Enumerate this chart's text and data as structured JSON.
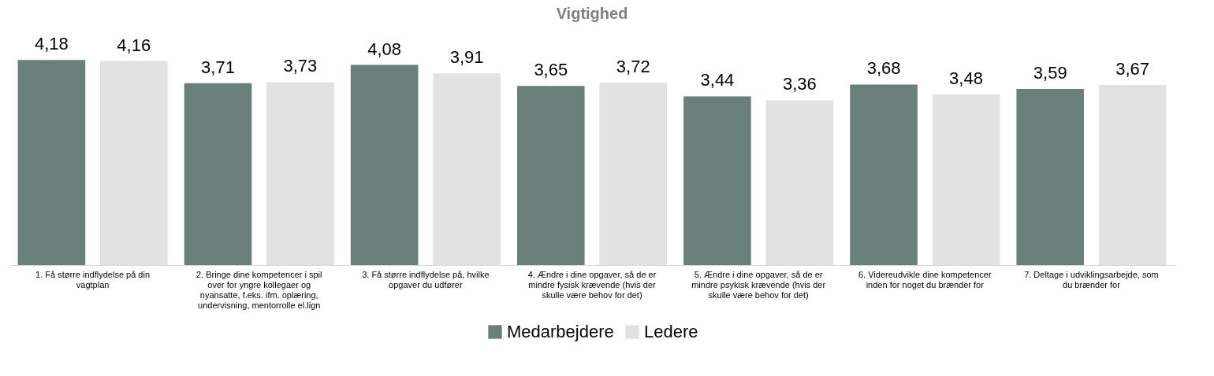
{
  "chart_data": {
    "type": "bar",
    "title": "Vigtighed",
    "categories": [
      "1. Få større indflydelse på din vagtplan",
      "2. Bringe dine kompetencer i spil over for yngre kollegaer og nyansatte, f.eks. ifm. oplæring, undervisning, mentorrolle el.lign",
      "3. Få større indflydelse på, hvilke opgaver du udfører",
      "4. Ændre i dine opgaver, så de er mindre fysisk krævende (hvis der skulle være behov for det)",
      "5. Ændre i dine opgaver, så de er mindre psykisk krævende (hvis der skulle være behov for det)",
      "6. Videreudvikle dine kompetencer inden for noget du brænder for",
      "7. Deltage i udviklingsarbejde, som du brænder for"
    ],
    "series": [
      {
        "name": "Medarbejdere",
        "color": "#687f7a",
        "values": [
          4.18,
          3.71,
          4.08,
          3.65,
          3.44,
          3.68,
          3.59
        ],
        "value_labels": [
          "4,18",
          "3,71",
          "4,08",
          "3,65",
          "3,44",
          "3,68",
          "3,59"
        ]
      },
      {
        "name": "Ledere",
        "color": "#e0e3e2",
        "values": [
          4.16,
          3.73,
          3.91,
          3.72,
          3.36,
          3.48,
          3.67
        ],
        "value_labels": [
          "4,16",
          "3,73",
          "3,91",
          "3,72",
          "3,36",
          "3,48",
          "3,67"
        ]
      }
    ],
    "legend": "bottom",
    "grid": false
  }
}
